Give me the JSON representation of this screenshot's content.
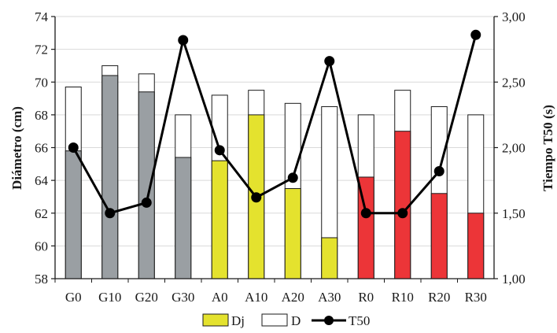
{
  "chart_data": {
    "type": "bar",
    "categories": [
      "G0",
      "G10",
      "G20",
      "G30",
      "A0",
      "A10",
      "A20",
      "A30",
      "R0",
      "R10",
      "R20",
      "R30"
    ],
    "series": [
      {
        "name": "Dj",
        "type": "bar",
        "axis": "left",
        "values": [
          65.8,
          70.4,
          69.4,
          65.4,
          65.2,
          68.0,
          63.5,
          60.5,
          64.2,
          67.0,
          63.2,
          62.0
        ]
      },
      {
        "name": "D",
        "type": "bar",
        "axis": "left",
        "values": [
          69.7,
          71.0,
          70.5,
          68.0,
          69.2,
          69.5,
          68.7,
          68.5,
          68.0,
          69.5,
          68.5,
          68.0
        ]
      },
      {
        "name": "T50",
        "type": "line",
        "axis": "right",
        "values": [
          2.0,
          1.5,
          1.58,
          2.82,
          1.98,
          1.62,
          1.77,
          2.66,
          1.5,
          1.5,
          1.82,
          2.86
        ]
      }
    ],
    "group_colors": {
      "G": "#9a9fa3",
      "A": "#e4e22e",
      "R": "#ec3538"
    },
    "ylabel": "Diámetro (cm)",
    "y2label": "Tiempo T50 (s)",
    "ylim": [
      58,
      74
    ],
    "yticks": [
      "58",
      "60",
      "62",
      "64",
      "66",
      "68",
      "70",
      "72",
      "74"
    ],
    "y2lim": [
      1.0,
      3.0
    ],
    "y2ticks": [
      "1,00",
      "1,50",
      "2,00",
      "2,50",
      "3,00"
    ],
    "grid": true,
    "legend": {
      "position": "bottom",
      "entries": [
        "Dj",
        "D",
        "T50"
      ]
    }
  }
}
